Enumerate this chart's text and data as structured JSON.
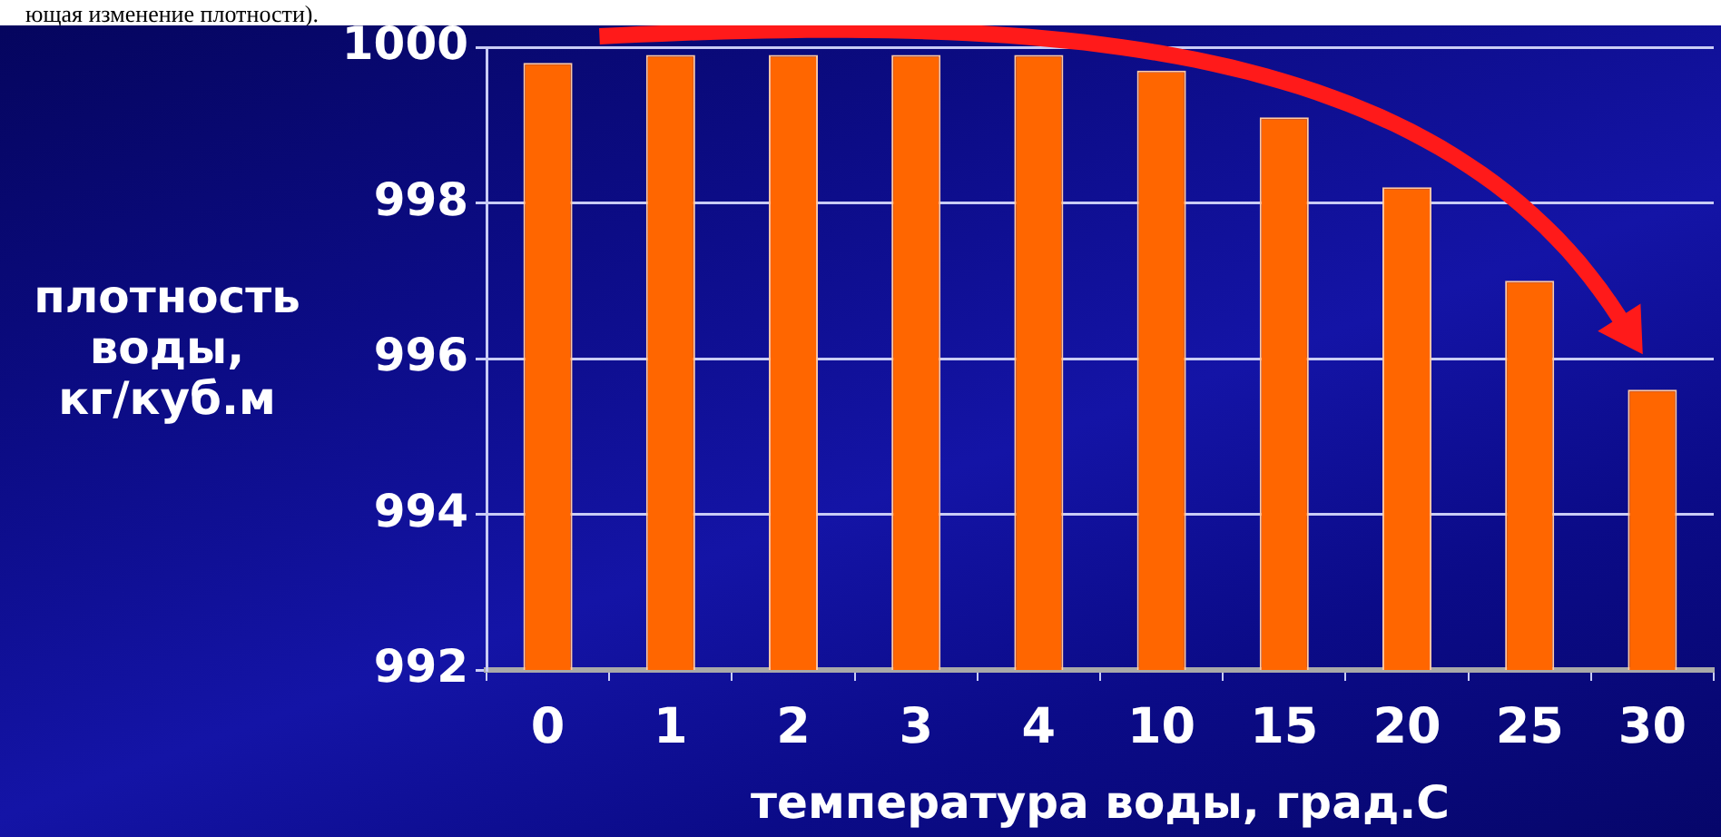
{
  "chart_data": {
    "type": "bar",
    "categories": [
      "0",
      "1",
      "2",
      "3",
      "4",
      "10",
      "15",
      "20",
      "25",
      "30"
    ],
    "values": [
      999.8,
      999.9,
      999.9,
      999.9,
      999.9,
      999.7,
      999.1,
      998.2,
      997.0,
      995.6
    ],
    "color": "#ff6600",
    "xlabel": "температура воды, град.С",
    "ylabel": "плотность воды, кг/куб.м",
    "ylim": [
      992,
      1000
    ],
    "yticks": [
      992,
      994,
      996,
      998,
      1000
    ],
    "grid": "y",
    "annotations": [
      "ющая изменение плотности)."
    ]
  }
}
